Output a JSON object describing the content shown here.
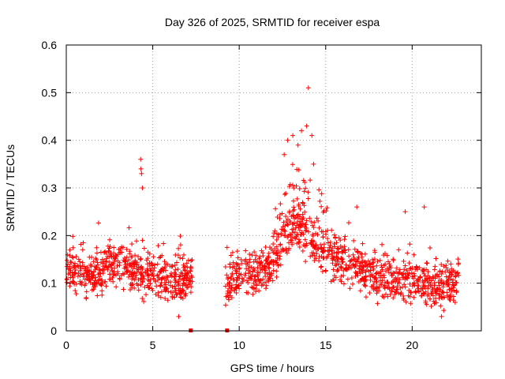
{
  "chart_data": {
    "type": "scatter",
    "title": "Day 326 of 2025, SRMTID for receiver espa",
    "xlabel": "GPS time / hours",
    "ylabel": "SRMTID / TECUs",
    "xlim": [
      0,
      24
    ],
    "ylim": [
      0,
      0.6
    ],
    "xticks": [
      0,
      5,
      10,
      15,
      20
    ],
    "yticks": [
      0,
      0.1,
      0.2,
      0.3,
      0.4,
      0.5,
      0.6
    ],
    "xtick_labels": [
      "0",
      "5",
      "10",
      "15",
      "20"
    ],
    "ytick_labels": [
      "0",
      "0.1",
      "0.2",
      "0.3",
      "0.4",
      "0.5",
      "0.6"
    ],
    "grid": true,
    "marker": "+",
    "color": "#ff0000",
    "series": [
      {
        "name": "SRMTID",
        "data_gap_hours": [
          7.3,
          9.2
        ],
        "segments": [
          {
            "x_start": 0.0,
            "x_end": 7.3,
            "baseline_profile": [
              [
                0,
                0.13
              ],
              [
                0.8,
                0.12
              ],
              [
                1.6,
                0.12
              ],
              [
                2.4,
                0.14
              ],
              [
                3.2,
                0.14
              ],
              [
                4.0,
                0.13
              ],
              [
                4.5,
                0.12
              ],
              [
                5.2,
                0.11
              ],
              [
                6.0,
                0.11
              ],
              [
                6.6,
                0.1
              ],
              [
                7.3,
                0.11
              ]
            ]
          },
          {
            "x_start": 9.2,
            "x_end": 22.7,
            "baseline_profile": [
              [
                9.2,
                0.1
              ],
              [
                10.0,
                0.11
              ],
              [
                11.0,
                0.12
              ],
              [
                11.8,
                0.14
              ],
              [
                12.5,
                0.19
              ],
              [
                13.2,
                0.22
              ],
              [
                13.8,
                0.21
              ],
              [
                14.5,
                0.18
              ],
              [
                15.2,
                0.16
              ],
              [
                16.0,
                0.15
              ],
              [
                17.0,
                0.13
              ],
              [
                18.0,
                0.11
              ],
              [
                19.0,
                0.11
              ],
              [
                20.0,
                0.11
              ],
              [
                21.0,
                0.1
              ],
              [
                22.0,
                0.09
              ],
              [
                22.7,
                0.12
              ]
            ]
          }
        ],
        "notable_points": [
          [
            4.3,
            0.36
          ],
          [
            4.32,
            0.34
          ],
          [
            4.35,
            0.33
          ],
          [
            4.4,
            0.3
          ],
          [
            12.6,
            0.37
          ],
          [
            12.8,
            0.4
          ],
          [
            13.1,
            0.41
          ],
          [
            13.4,
            0.39
          ],
          [
            13.6,
            0.42
          ],
          [
            13.9,
            0.43
          ],
          [
            14.0,
            0.51
          ],
          [
            14.2,
            0.41
          ],
          [
            14.3,
            0.35
          ],
          [
            16.8,
            0.26
          ],
          [
            19.6,
            0.25
          ],
          [
            20.7,
            0.26
          ],
          [
            6.5,
            0.03
          ],
          [
            21.7,
            0.03
          ],
          [
            7.2,
            0.0
          ],
          [
            9.3,
            0.0
          ]
        ]
      }
    ]
  }
}
